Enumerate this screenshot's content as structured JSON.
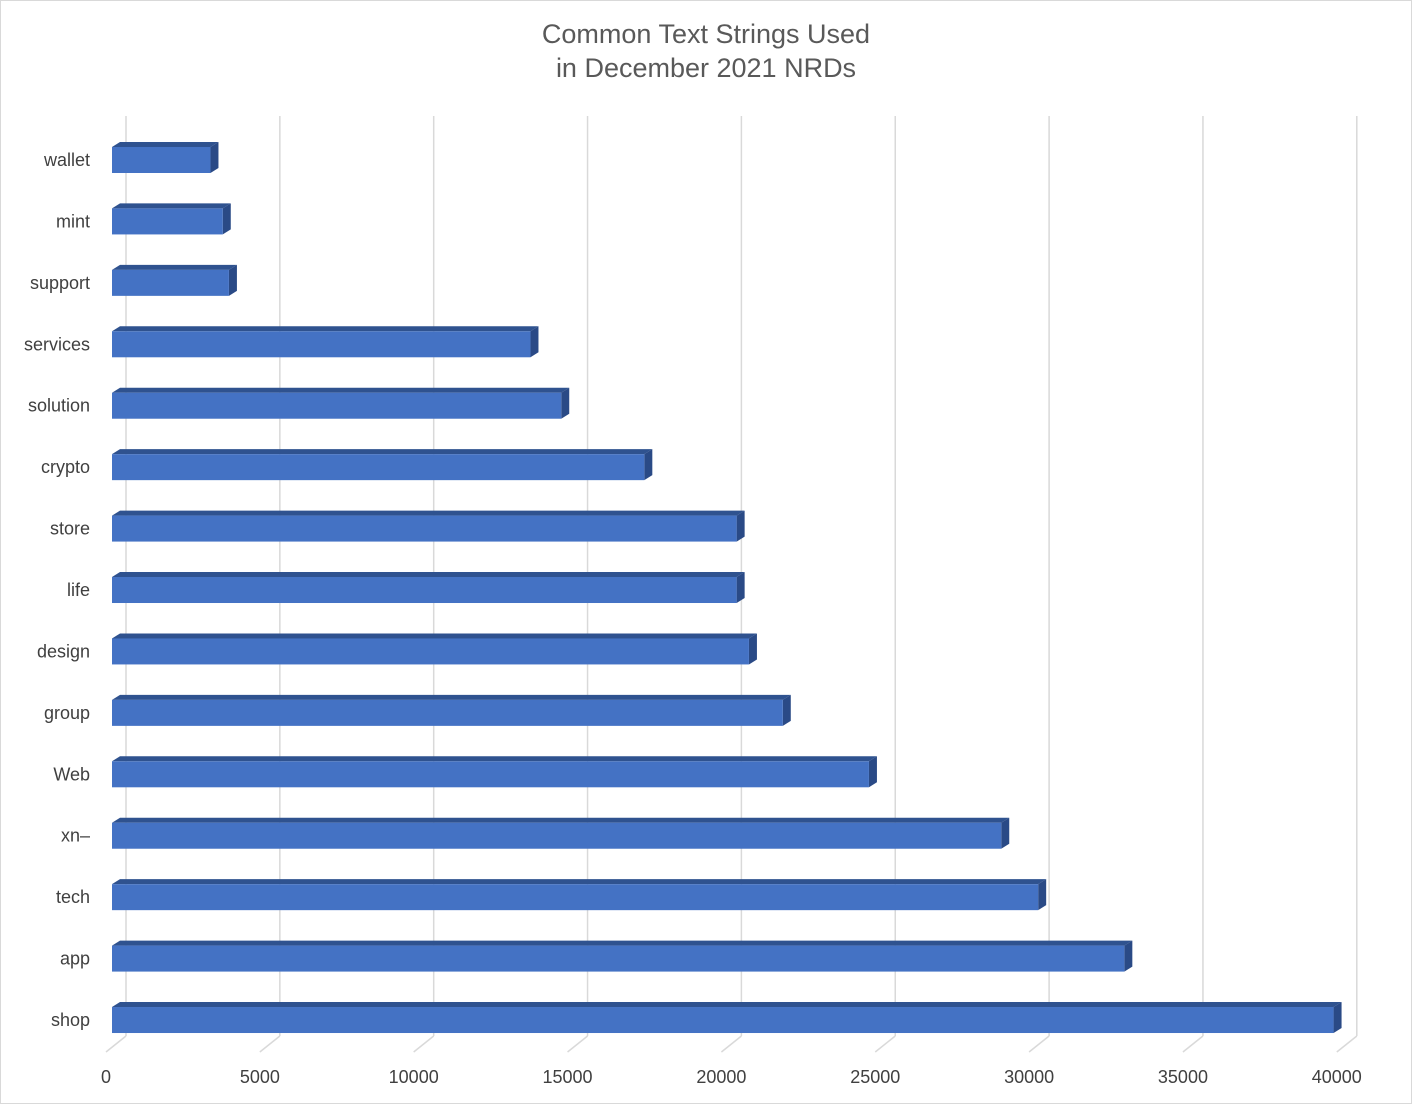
{
  "chart_data": {
    "type": "bar",
    "orientation": "horizontal",
    "style": "3d",
    "title": "Common Text Strings Used\nin December 2021 NRDs",
    "title_lines": [
      "Common Text Strings Used",
      "in December 2021 NRDs"
    ],
    "xlabel": "",
    "ylabel": "",
    "categories": [
      "wallet",
      "mint",
      "support",
      "services",
      "solution",
      "crypto",
      "store",
      "life",
      "design",
      "group",
      "Web",
      "xn–",
      "tech",
      "app",
      "shop"
    ],
    "values": [
      3200,
      3600,
      3800,
      13600,
      14600,
      17300,
      20300,
      20300,
      20700,
      21800,
      24600,
      28900,
      30100,
      32900,
      39700
    ],
    "xlim": [
      0,
      40000
    ],
    "xticks": [
      0,
      5000,
      10000,
      15000,
      20000,
      25000,
      30000,
      35000,
      40000
    ],
    "xtick_labels": [
      "0",
      "5000",
      "10000",
      "15000",
      "20000",
      "25000",
      "30000",
      "35000",
      "40000"
    ],
    "grid": true,
    "legend": "none",
    "colors": {
      "bar_front": "#4472c4",
      "bar_top": "#2f528f",
      "bar_side": "#2a4a86",
      "grid": "#d9d9d9",
      "text": "#404040",
      "title": "#595959"
    }
  }
}
